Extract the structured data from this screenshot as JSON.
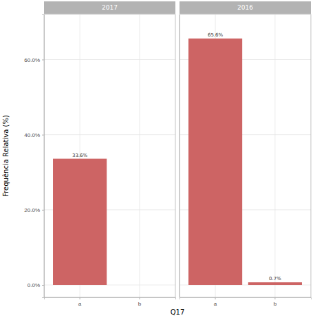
{
  "chart_data": [
    {
      "type": "bar",
      "title": "2017",
      "ylabel": "Frequência Relativa (%)",
      "xlabel": "Q17",
      "categories": [
        "a",
        "b"
      ],
      "values": [
        33.6,
        null
      ],
      "value_labels": [
        "33.6%",
        null
      ],
      "color": "#cd6464",
      "ylim": [
        -3.3,
        72
      ],
      "yticks": [
        {
          "value": 0,
          "label": "0.0%"
        },
        {
          "value": 20,
          "label": "20.0%"
        },
        {
          "value": 40,
          "label": "40.0%"
        },
        {
          "value": 60,
          "label": "60.0%"
        }
      ],
      "grid": true,
      "data_labels": true
    },
    {
      "type": "bar",
      "title": "2016",
      "categories": [
        "a",
        "b"
      ],
      "values": [
        65.6,
        0.7
      ],
      "value_labels": [
        "65.6%",
        "0.7%"
      ],
      "color": "#cd6464",
      "ylim": [
        -3.3,
        72
      ],
      "yticks": [
        {
          "value": 0,
          "label": "0.0%"
        },
        {
          "value": 20,
          "label": "20.0%"
        },
        {
          "value": 40,
          "label": "40.0%"
        },
        {
          "value": 60,
          "label": "60.0%"
        }
      ],
      "grid": true,
      "data_labels": true,
      "tick_labels": "x"
    }
  ]
}
